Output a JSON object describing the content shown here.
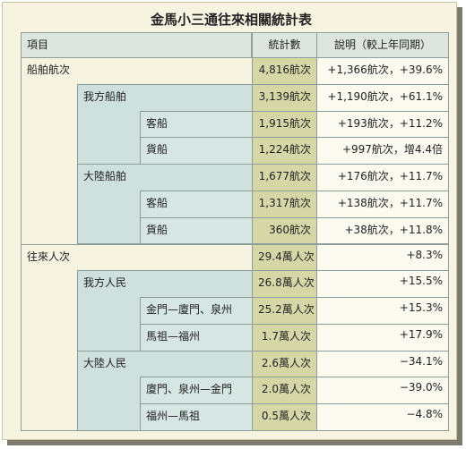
{
  "title": "金馬小三通往來相關統計表",
  "table": {
    "header": [
      "項目",
      "統計數",
      "說明（較上年同期）"
    ],
    "rows": [
      {
        "label": "船舶航次",
        "value": "4,816航次",
        "note": "+1,366航次，+39.6%",
        "children": [
          {
            "label": "我方船舶",
            "value": "3,139航次",
            "note": "+1,190航次，+61.1%",
            "children": [
              {
                "label": "客船",
                "value": "1,915航次",
                "note": "+193航次，+11.2%"
              },
              {
                "label": "貨船",
                "value": "1,224航次",
                "note": "+997航次，增4.4倍"
              }
            ]
          },
          {
            "label": "大陸船舶",
            "value": "1,677航次",
            "note": "+176航次，+11.7%",
            "children": [
              {
                "label": "客船",
                "value": "1,317航次",
                "note": "+138航次，+11.7%"
              },
              {
                "label": "貨船",
                "value": "360航次",
                "note": "+38航次，+11.8%"
              }
            ]
          }
        ]
      },
      {
        "label": "往來人次",
        "value": "29.4萬人次",
        "note": "+8.3%",
        "children": [
          {
            "label": "我方人民",
            "value": "26.8萬人次",
            "note": "+15.5%",
            "children": [
              {
                "label": "金門—廈門、泉州",
                "value": "25.2萬人次",
                "note": "+15.3%"
              },
              {
                "label": "馬祖—福州",
                "value": "1.7萬人次",
                "note": "+17.9%"
              }
            ]
          },
          {
            "label": "大陸人民",
            "value": "2.6萬人次",
            "note": "−34.1%",
            "children": [
              {
                "label": "廈門、泉州—金門",
                "value": "2.0萬人次",
                "note": "−39.0%"
              },
              {
                "label": "福州—馬祖",
                "value": "0.5萬人次",
                "note": "−4.8%"
              }
            ]
          }
        ]
      }
    ]
  }
}
